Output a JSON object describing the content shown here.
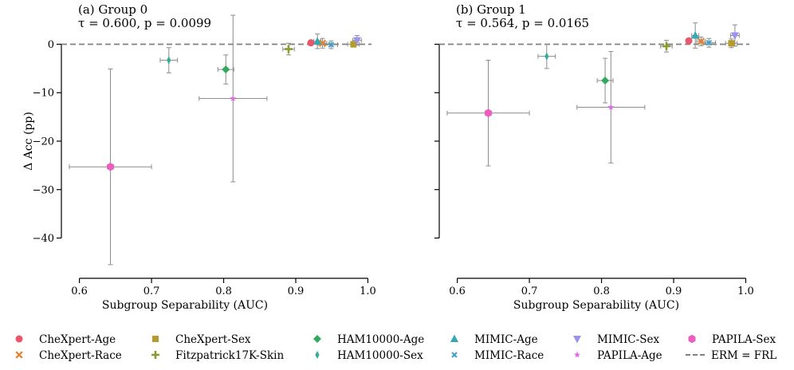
{
  "chart_data": [
    {
      "type": "scatter",
      "title_line1": "(a) Group 0",
      "title_line2": "τ = 0.600, p = 0.0099",
      "xlabel": "Subgroup Separability (AUC)",
      "ylabel": "Δ Acc (pp)",
      "xlim": [
        0.575,
        1.005
      ],
      "ylim": [
        -46.5,
        6.5
      ],
      "xticks": [
        0.6,
        0.7,
        0.8,
        0.9,
        1.0
      ],
      "xtick_labels": [
        "0.6",
        "0.7",
        "0.8",
        "0.9",
        "1.0"
      ],
      "yticks": [
        0,
        -10,
        -20,
        -30,
        -40
      ],
      "ytick_labels": [
        "0",
        "−10",
        "−20",
        "−30",
        "−40"
      ],
      "baseline": 0,
      "points": [
        {
          "series": "CheXpert-Age",
          "x": 0.921,
          "y": 0.3,
          "xerr": 0.0,
          "yerr": 0.0
        },
        {
          "series": "CheXpert-Race",
          "x": 0.937,
          "y": 0.2,
          "xerr": 0.006,
          "yerr": 1.0
        },
        {
          "series": "CheXpert-Sex",
          "x": 0.98,
          "y": 0.0,
          "xerr": 0.008,
          "yerr": 0.6
        },
        {
          "series": "Fitzpatrick17K-Skin",
          "x": 0.89,
          "y": -1.0,
          "xerr": 0.008,
          "yerr": 1.2
        },
        {
          "series": "HAM10000-Age",
          "x": 0.803,
          "y": -5.2,
          "xerr": 0.011,
          "yerr": 3.0
        },
        {
          "series": "HAM10000-Sex",
          "x": 0.724,
          "y": -3.3,
          "xerr": 0.012,
          "yerr": 2.6
        },
        {
          "series": "MIMIC-Age",
          "x": 0.93,
          "y": 0.6,
          "xerr": 0.005,
          "yerr": 1.5
        },
        {
          "series": "MIMIC-Race",
          "x": 0.949,
          "y": -0.1,
          "xerr": 0.009,
          "yerr": 0.8
        },
        {
          "series": "MIMIC-Sex",
          "x": 0.985,
          "y": 0.8,
          "xerr": 0.006,
          "yerr": 1.0
        },
        {
          "series": "PAPILA-Age",
          "x": 0.813,
          "y": -11.2,
          "xerr": 0.047,
          "yerr": 17.2
        },
        {
          "series": "PAPILA-Sex",
          "x": 0.643,
          "y": -25.3,
          "xerr": 0.057,
          "yerr": 20.2
        }
      ]
    },
    {
      "type": "scatter",
      "title_line1": "(b) Group 1",
      "title_line2": "τ = 0.564, p = 0.0165",
      "xlabel": "Subgroup Separability (AUC)",
      "ylabel": "",
      "xlim": [
        0.575,
        1.005
      ],
      "ylim": [
        -46.5,
        6.5
      ],
      "xticks": [
        0.6,
        0.7,
        0.8,
        0.9,
        1.0
      ],
      "xtick_labels": [
        "0.6",
        "0.7",
        "0.8",
        "0.9",
        "1.0"
      ],
      "yticks": [
        0,
        -10,
        -20,
        -30,
        -40
      ],
      "ytick_labels": [
        "",
        "",
        "",
        "",
        ""
      ],
      "baseline": 0,
      "points": [
        {
          "series": "CheXpert-Age",
          "x": 0.921,
          "y": 0.7,
          "xerr": 0.0,
          "yerr": 0.0
        },
        {
          "series": "CheXpert-Race",
          "x": 0.938,
          "y": 0.6,
          "xerr": 0.006,
          "yerr": 0.9
        },
        {
          "series": "CheXpert-Sex",
          "x": 0.98,
          "y": 0.2,
          "xerr": 0.008,
          "yerr": 0.9
        },
        {
          "series": "Fitzpatrick17K-Skin",
          "x": 0.89,
          "y": -0.4,
          "xerr": 0.008,
          "yerr": 1.2
        },
        {
          "series": "HAM10000-Age",
          "x": 0.805,
          "y": -7.5,
          "xerr": 0.011,
          "yerr": 4.6
        },
        {
          "series": "HAM10000-Sex",
          "x": 0.724,
          "y": -2.5,
          "xerr": 0.012,
          "yerr": 2.5
        },
        {
          "series": "MIMIC-Age",
          "x": 0.93,
          "y": 1.8,
          "xerr": 0.005,
          "yerr": 2.6
        },
        {
          "series": "MIMIC-Race",
          "x": 0.949,
          "y": 0.3,
          "xerr": 0.009,
          "yerr": 0.9
        },
        {
          "series": "MIMIC-Sex",
          "x": 0.985,
          "y": 1.8,
          "xerr": 0.006,
          "yerr": 2.2
        },
        {
          "series": "PAPILA-Age",
          "x": 0.813,
          "y": -13.0,
          "xerr": 0.047,
          "yerr": 11.5
        },
        {
          "series": "PAPILA-Sex",
          "x": 0.643,
          "y": -14.2,
          "xerr": 0.057,
          "yerr": 10.9
        }
      ]
    }
  ],
  "legend": {
    "items": [
      {
        "label": "CheXpert-Age",
        "marker": "circle",
        "color": "#e8566c"
      },
      {
        "label": "CheXpert-Race",
        "marker": "x",
        "color": "#e08535"
      },
      {
        "label": "CheXpert-Sex",
        "marker": "square",
        "color": "#b39b2c"
      },
      {
        "label": "Fitzpatrick17K-Skin",
        "marker": "plus",
        "color": "#8c9b2a"
      },
      {
        "label": "HAM10000-Age",
        "marker": "diamond",
        "color": "#33a85f"
      },
      {
        "label": "HAM10000-Sex",
        "marker": "thin-diamond",
        "color": "#33ad94"
      },
      {
        "label": "MIMIC-Age",
        "marker": "triangle-up",
        "color": "#35a8b4"
      },
      {
        "label": "MIMIC-Race",
        "marker": "x-small",
        "color": "#3aa2c8"
      },
      {
        "label": "MIMIC-Sex",
        "marker": "triangle-down",
        "color": "#9c93ef"
      },
      {
        "label": "PAPILA-Age",
        "marker": "star",
        "color": "#df6bea"
      },
      {
        "label": "PAPILA-Sex",
        "marker": "hexagon",
        "color": "#ed5cbf"
      },
      {
        "label": "ERM = FRL",
        "marker": "dashed-line",
        "color": "#808080"
      }
    ]
  }
}
